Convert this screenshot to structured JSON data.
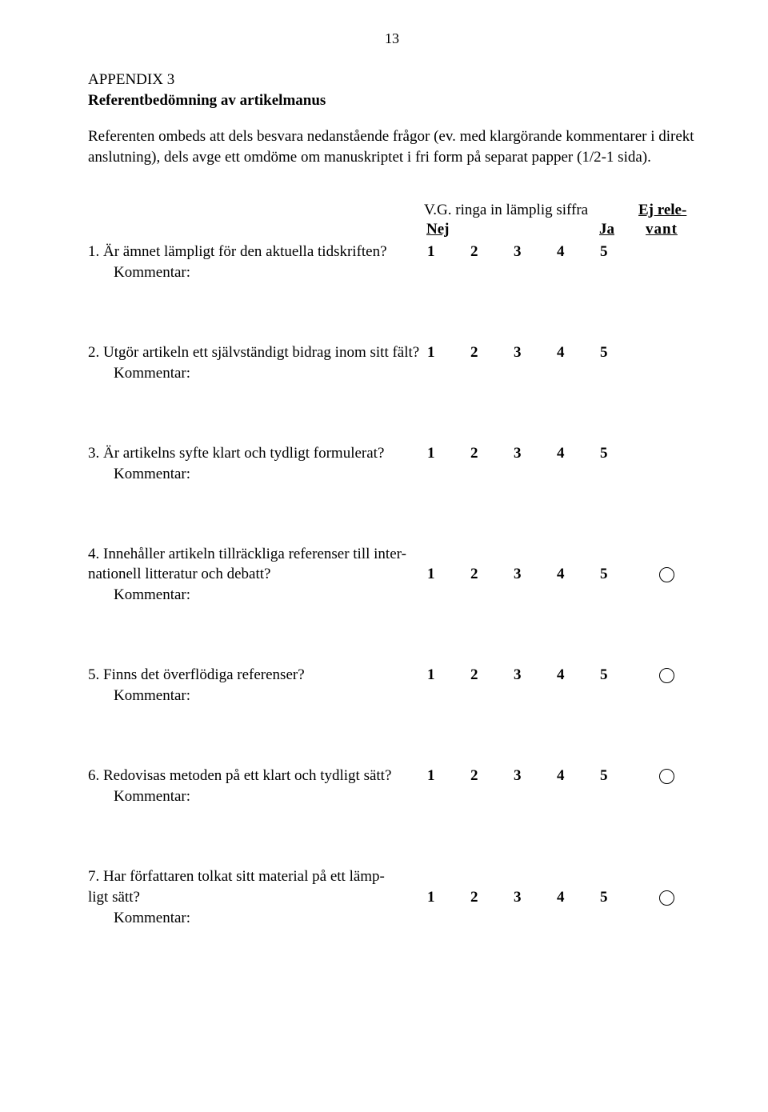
{
  "page_number": "13",
  "appendix_label": "APPENDIX 3",
  "title": "Referentbedömning av artikelmanus",
  "intro": "Referenten ombeds att dels besvara nedanstående frågor (ev. med klargörande kommentarer i direkt anslutning), dels avge ett omdöme om manuskriptet i fri form på separat papper (1/2-1 sida).",
  "header": {
    "vg": "V.G. ringa in lämplig siffra",
    "nej": "Nej",
    "ja": "Ja",
    "ej_rele": "Ej rele-",
    "vant": "vant"
  },
  "scale": [
    "1",
    "2",
    "3",
    "4",
    "5"
  ],
  "kommentar_label": "Kommentar:",
  "questions": {
    "q1": "1. Är ämnet lämpligt för den aktuella tidskriften?",
    "q2": "2. Utgör artikeln ett självständigt bidrag inom sitt fält?",
    "q3": "3. Är artikelns syfte klart och tydligt formulerat?",
    "q4_l1": "4. Innehåller artikeln tillräckliga referenser till inter-",
    "q4_l2": "nationell litteratur och debatt?",
    "q5": "5. Finns det överflödiga referenser?",
    "q6": "6. Redovisas metoden på ett klart och tydligt sätt?",
    "q7_l1": "7. Har författaren tolkat sitt material på ett lämp-",
    "q7_l2": "ligt sätt?"
  }
}
